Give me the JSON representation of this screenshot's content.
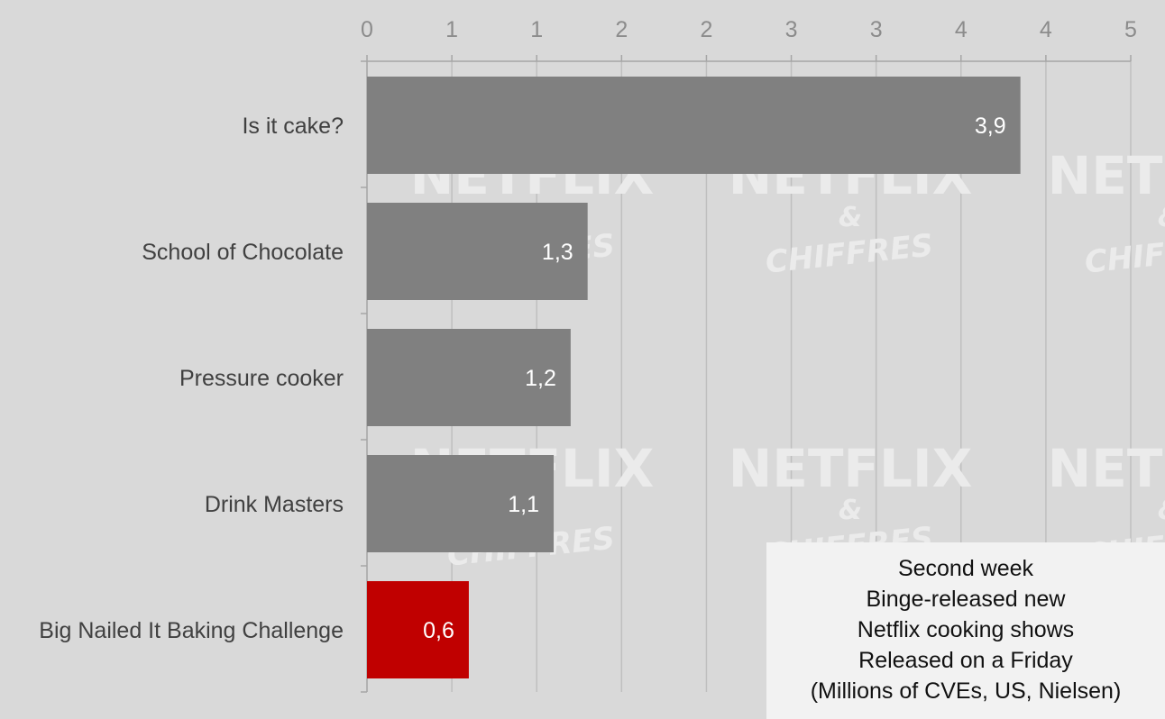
{
  "chart_data": {
    "type": "bar",
    "orientation": "horizontal",
    "categories": [
      "Is it cake?",
      "School of Chocolate",
      "Pressure cooker",
      "Drink Masters",
      "Big Nailed It Baking Challenge"
    ],
    "values": [
      3.85,
      1.3,
      1.2,
      1.1,
      0.6
    ],
    "data_labels": [
      "3,9",
      "1,3",
      "1,2",
      "1,1",
      "0,6"
    ],
    "bar_colors": [
      "#808080",
      "#808080",
      "#808080",
      "#808080",
      "#c00000"
    ],
    "x_ticks": [
      0,
      0.5,
      1,
      1.5,
      2,
      2.5,
      3,
      3.5,
      4,
      4.5
    ],
    "x_tick_labels": [
      "0",
      "1",
      "1",
      "2",
      "2",
      "3",
      "3",
      "4",
      "4",
      "5"
    ],
    "xlim": [
      0,
      4.5
    ],
    "x_axis_position": "top",
    "grid": true,
    "legend_position": "bottom-right"
  },
  "legend_text": {
    "line1": "Second week",
    "line2": "Binge-released new",
    "line3": "Netflix cooking shows",
    "line4": "Released on a Friday",
    "line5": "(Millions of CVEs, US, Nielsen)"
  },
  "watermark": {
    "word1": "NETFLIX",
    "word2": "&",
    "word3": "CHIFFRES"
  },
  "colors": {
    "background": "#d9d9d9",
    "bar": "#808080",
    "highlight_bar": "#c00000",
    "grid": "#bfbfbf",
    "legend_box": "#f2f2f2"
  }
}
